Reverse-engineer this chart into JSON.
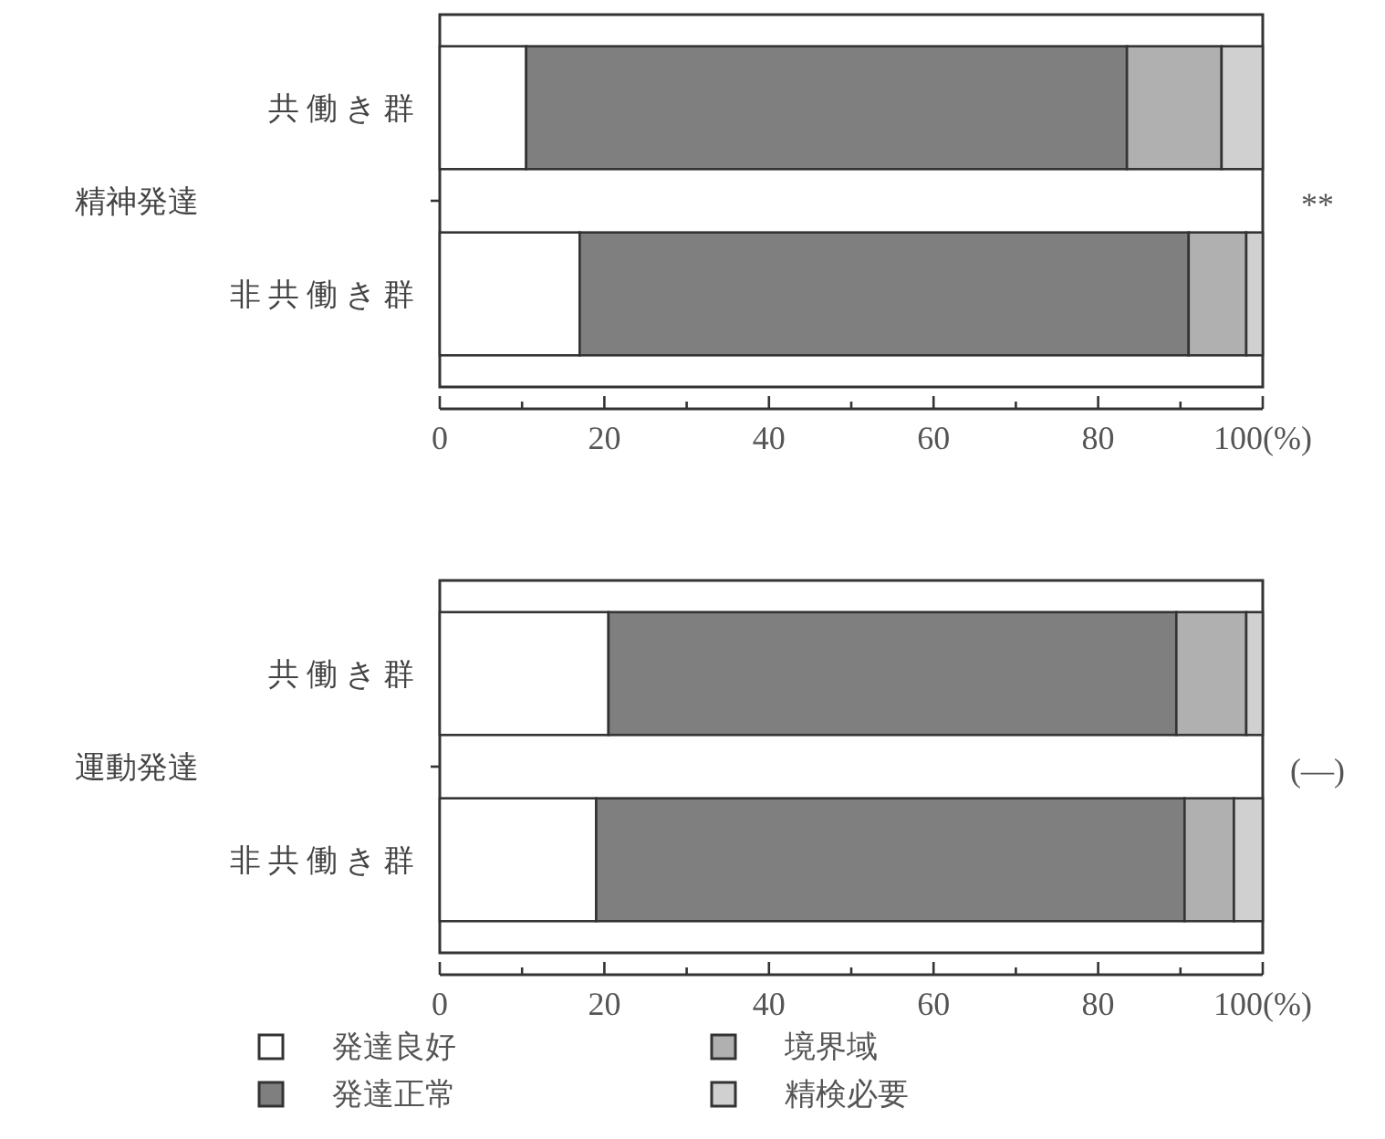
{
  "chart_data": [
    {
      "type": "bar",
      "orientation": "horizontal",
      "stacked": true,
      "ylabel": "精神発達",
      "categories": [
        "共働き群",
        "非共働き群"
      ],
      "series": [
        {
          "color": "#ffffff",
          "values": [
            10.5,
            17
          ]
        },
        {
          "color": "#7f7f7f",
          "values": [
            73,
            74
          ]
        },
        {
          "color": "#b0b0b0",
          "values": [
            11.5,
            7
          ]
        },
        {
          "color": "#d0d0d0",
          "values": [
            5,
            2
          ]
        }
      ],
      "xlim": [
        0,
        100
      ],
      "xticks": [
        0,
        {
          "value": 10,
          "label": null
        },
        20,
        {
          "value": 30,
          "label": null
        },
        40,
        {
          "value": 50,
          "label": null
        },
        60,
        {
          "value": 70,
          "label": null
        },
        80,
        {
          "value": 90,
          "label": null
        },
        {
          "value": 100,
          "label": "100(%)"
        }
      ],
      "annotations": [
        "**"
      ]
    },
    {
      "type": "bar",
      "orientation": "horizontal",
      "stacked": true,
      "ylabel": "運動発達",
      "categories": [
        "共働き群",
        "非共働き群"
      ],
      "series": [
        {
          "name": "発達良好",
          "color": "#ffffff",
          "values": [
            20.5,
            19
          ]
        },
        {
          "name": "発達正常",
          "color": "#7f7f7f",
          "values": [
            69,
            71.5
          ]
        },
        {
          "name": "境界域",
          "color": "#b0b0b0",
          "values": [
            8.5,
            6
          ]
        },
        {
          "name": "精検必要",
          "color": "#d0d0d0",
          "values": [
            2,
            3.5
          ]
        }
      ],
      "xlim": [
        0,
        100
      ],
      "xticks": [
        0,
        {
          "value": 10,
          "label": null
        },
        20,
        {
          "value": 30,
          "label": null
        },
        40,
        {
          "value": 50,
          "label": null
        },
        60,
        {
          "value": 70,
          "label": null
        },
        80,
        {
          "value": 90,
          "label": null
        },
        {
          "value": 100,
          "label": "100(%)"
        }
      ],
      "annotations": [
        "(—)"
      ],
      "legend": "bottom"
    }
  ]
}
